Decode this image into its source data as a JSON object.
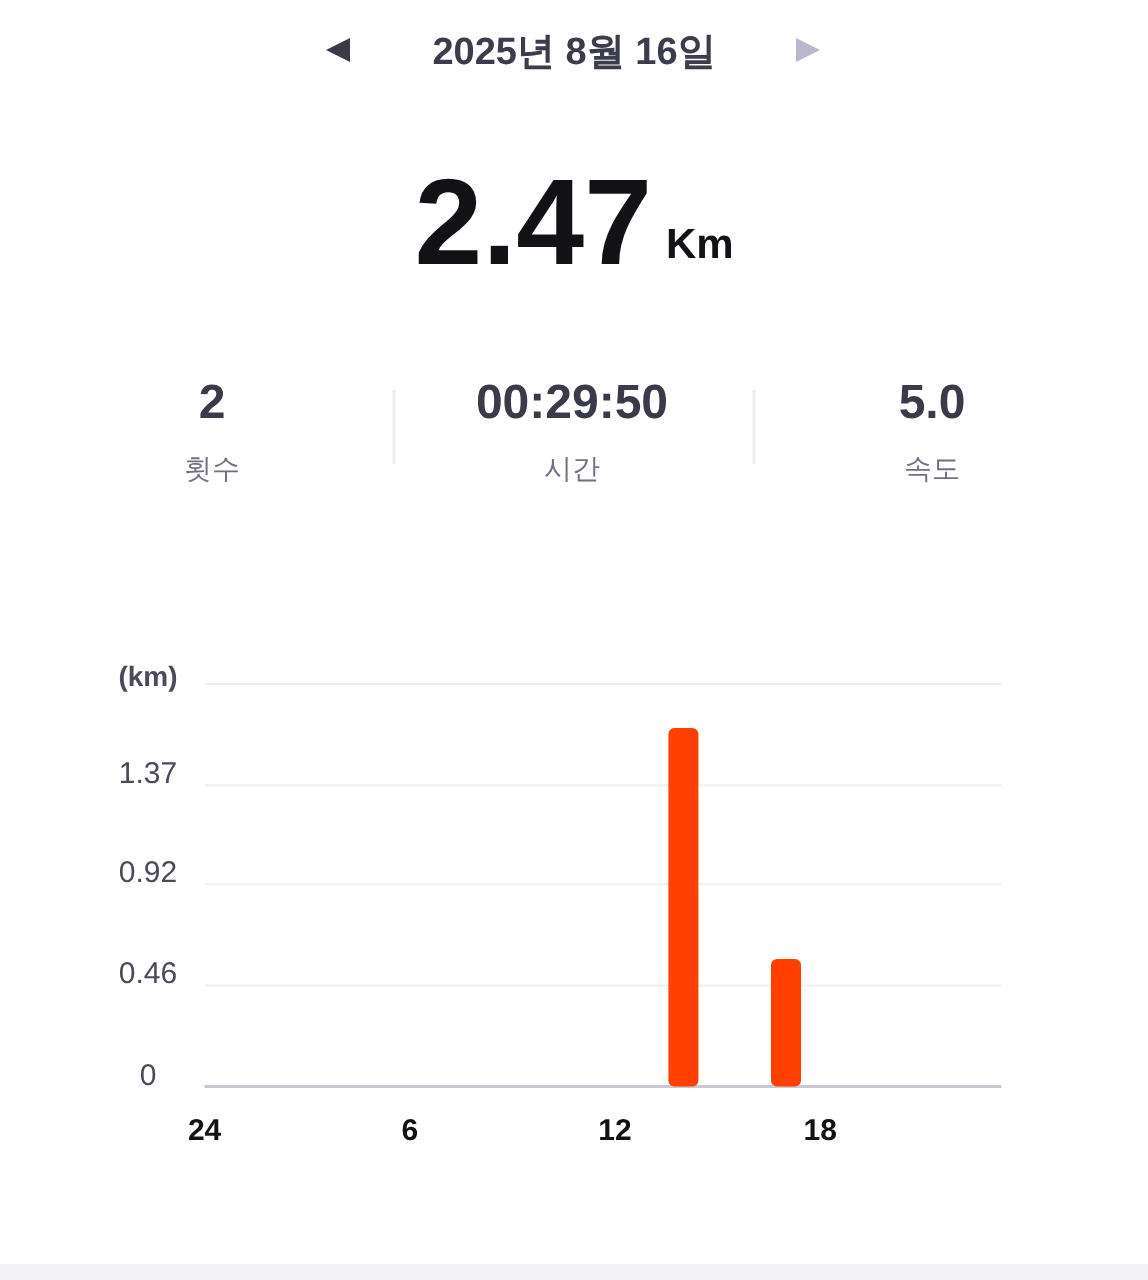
{
  "chart_data": {
    "type": "bar",
    "title": "2025년 8월 16일",
    "ylabel": "(km)",
    "annotations": [
      "2.47",
      "Km",
      "2",
      "횟수",
      "00:29:50",
      "시간",
      "5.0",
      "속도"
    ],
    "categories": [
      "24",
      null,
      null,
      null,
      null,
      null,
      "6",
      null,
      null,
      null,
      null,
      null,
      "12",
      null,
      null,
      null,
      null,
      null,
      "18",
      null,
      null,
      null,
      null,
      null
    ],
    "values": [
      null,
      null,
      null,
      null,
      null,
      null,
      null,
      null,
      null,
      null,
      null,
      null,
      null,
      null,
      1.63,
      null,
      null,
      0.58,
      null,
      null,
      null,
      null,
      null,
      null
    ],
    "color": "#ff4000",
    "ylim": [
      0,
      1.83
    ],
    "yticks": [
      0,
      0.46,
      0.92,
      1.37
    ],
    "grid": "y"
  }
}
